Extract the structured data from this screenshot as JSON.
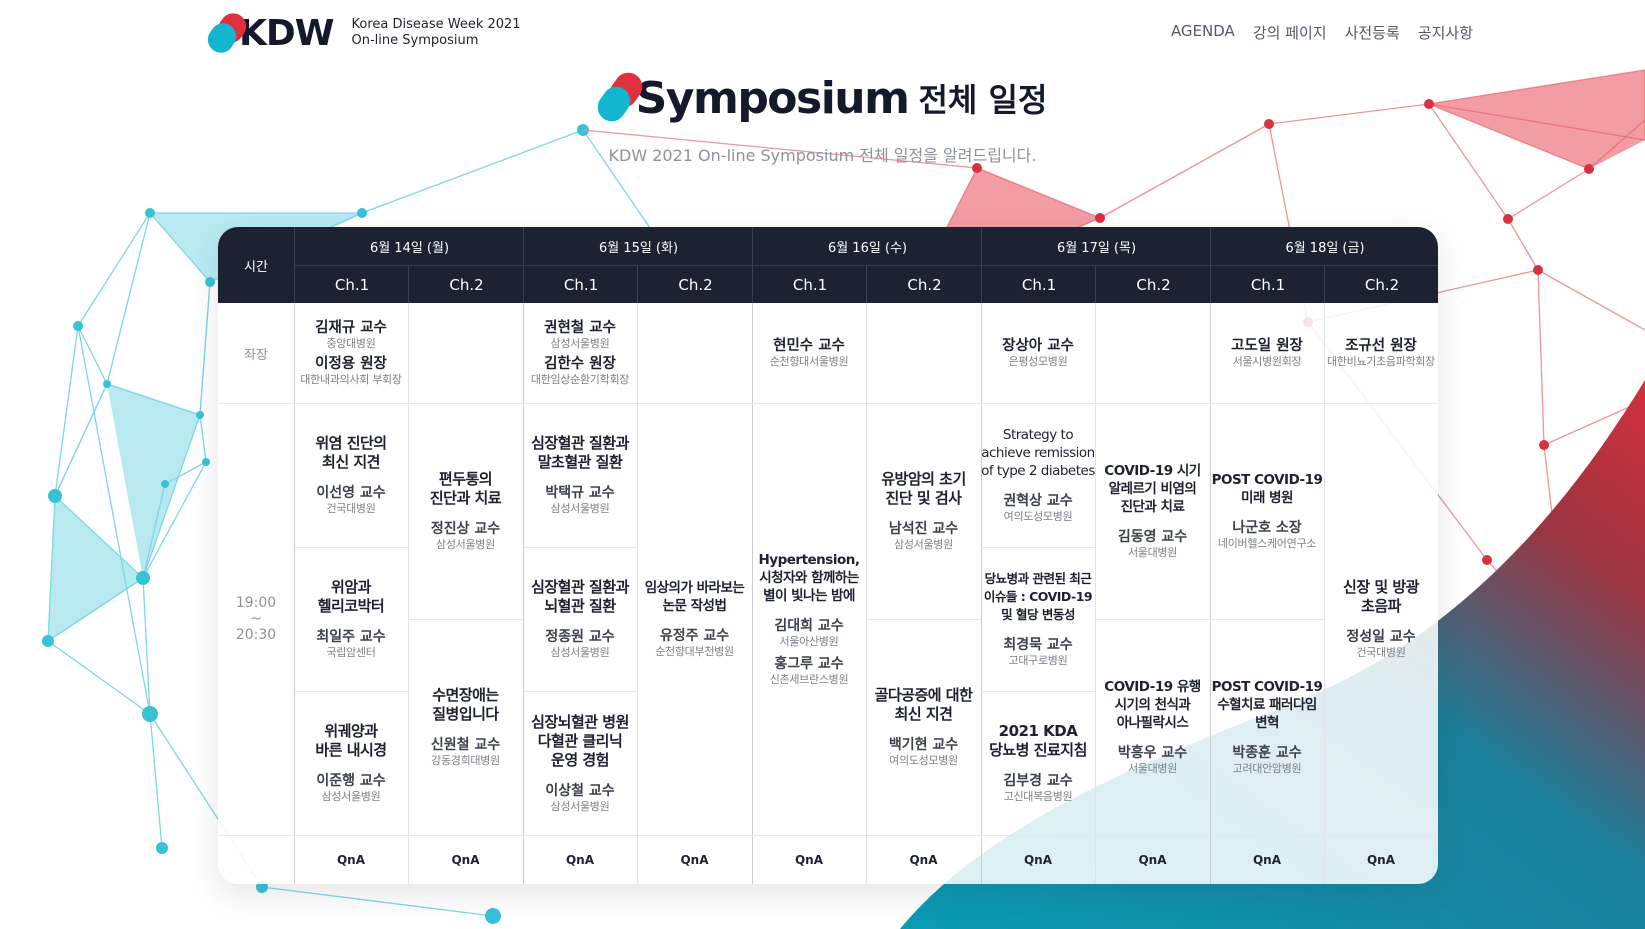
{
  "header": {
    "logo_text": "KDW",
    "logo_sub_1": "Korea Disease Week 2021",
    "logo_sub_2": "On-line Symposium",
    "nav": [
      "AGENDA",
      "강의 페이지",
      "사전등록",
      "공지사항"
    ]
  },
  "title": {
    "english": "Symposium",
    "korean": "전체 일정",
    "subtitle": "KDW 2021 On-line Symposium 전체 일정을 알려드립니다."
  },
  "colors": {
    "dark_header": "#1d2232",
    "accent_red": "#e0303e",
    "accent_teal": "#12b6cf"
  },
  "table": {
    "time_header": "시간",
    "days": [
      "6월 14일 (월)",
      "6월 15일 (화)",
      "6월 16일 (수)",
      "6월 17일 (목)",
      "6월 18일 (금)"
    ],
    "channels": [
      "Ch.1",
      "Ch.2",
      "Ch.1",
      "Ch.2",
      "Ch.1",
      "Ch.2",
      "Ch.1",
      "Ch.2",
      "Ch.1",
      "Ch.2"
    ],
    "chair_label": "좌장",
    "time_start": "19:00",
    "time_sep": "~",
    "time_end": "20:30",
    "qna_label": "QnA",
    "chairs": [
      {
        "name": "김재규 교수",
        "aff": "중앙대병원",
        "name2": "이정용 원장",
        "aff2": "대한내과의사회 부회장"
      },
      {
        "name": "권현철 교수",
        "aff": "삼성서울병원",
        "name2": "김한수 원장",
        "aff2": "대한임상순환기학회장"
      },
      {
        "name": "현민수 교수",
        "aff": "순천향대서울병원"
      },
      {
        "name": "장상아 교수",
        "aff": "은평성모병원"
      },
      {
        "name": "고도일 원장",
        "aff": "서울시병원회장"
      },
      {
        "name": "조규선 원장",
        "aff": "대한비뇨기초음파학회장"
      }
    ],
    "sessions": [
      {
        "title": "위염 진단의\n최신 지견",
        "speaker": "이선영 교수",
        "aff": "건국대병원"
      },
      {
        "title": "위암과\n헬리코박터",
        "speaker": "최일주 교수",
        "aff": "국립암센터"
      },
      {
        "title": "위궤양과\n바른 내시경",
        "speaker": "이준행 교수",
        "aff": "삼성서울병원"
      },
      {
        "title": "편두통의\n진단과 치료",
        "speaker": "정진상 교수",
        "aff": "삼성서울병원"
      },
      {
        "title": "수면장애는\n질병입니다",
        "speaker": "신원철 교수",
        "aff": "강동경희대병원"
      },
      {
        "title": "심장혈관 질환과\n말초혈관 질환",
        "speaker": "박택규 교수",
        "aff": "삼성서울병원"
      },
      {
        "title": "심장혈관 질환과\n뇌혈관 질환",
        "speaker": "정종원 교수",
        "aff": "삼성서울병원"
      },
      {
        "title": "심장뇌혈관 병원\n다혈관 클리닉\n운영 경험",
        "speaker": "이상철 교수",
        "aff": "삼성서울병원"
      },
      {
        "title": "임상의가 바라보는\n논문 작성법",
        "speaker": "유정주 교수",
        "aff": "순천향대부천병원"
      },
      {
        "title": "Hypertension,\n시청자와 함께하는\n별이 빛나는 밤에",
        "speaker": "김대희 교수",
        "aff": "서울아산병원",
        "speaker2": "홍그루 교수",
        "aff2": "신촌세브란스병원"
      },
      {
        "title": "유방암의 초기\n진단 및 검사",
        "speaker": "남석진 교수",
        "aff": "삼성서울병원"
      },
      {
        "title": "골다공증에 대한\n최신 지견",
        "speaker": "백기현 교수",
        "aff": "여의도성모병원"
      },
      {
        "title": "Strategy to\nachieve remission\nof type 2 diabetes",
        "speaker": "권혁상 교수",
        "aff": "여의도성모병원"
      },
      {
        "title": "당뇨병과 관련된 최근\n이슈들 : COVID-19\n및 혈당 변동성",
        "speaker": "최경묵 교수",
        "aff": "고대구로병원"
      },
      {
        "title": "2021 KDA\n당뇨병 진료지침",
        "speaker": "김부경 교수",
        "aff": "고신대복음병원"
      },
      {
        "title": "COVID-19 시기\n알레르기 비염의\n진단과 치료",
        "speaker": "김동영 교수",
        "aff": "서울대병원"
      },
      {
        "title": "COVID-19 유행\n시기의 천식과\n아나필락시스",
        "speaker": "박흥우 교수",
        "aff": "서울대병원"
      },
      {
        "title": "POST COVID-19\n미래 병원",
        "speaker": "나군호 소장",
        "aff": "네이버헬스케어연구소"
      },
      {
        "title": "POST COVID-19\n수혈치료 패러다임\n변혁",
        "speaker": "박종훈 교수",
        "aff": "고려대안암병원"
      },
      {
        "title": "신장 및 방광\n초음파"
      },
      {
        "speaker": "정성일 교수",
        "aff": "건국대병원"
      }
    ]
  }
}
